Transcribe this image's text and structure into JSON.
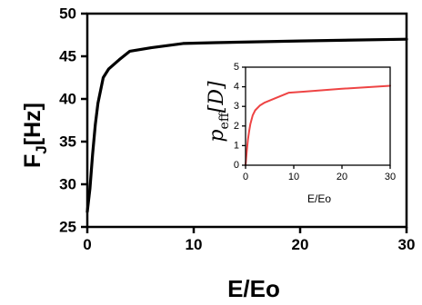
{
  "chart_data": [
    {
      "type": "line",
      "xlabel": "E/Eo",
      "ylabel": {
        "main": "F",
        "sub": "J",
        "units": "[Hz]"
      },
      "xlim": [
        0,
        30
      ],
      "ylim": [
        25,
        50
      ],
      "x_ticks": [
        0,
        10,
        20,
        30
      ],
      "y_ticks": [
        25,
        30,
        35,
        40,
        45,
        50
      ],
      "grid": false,
      "series": [
        {
          "color": "#000000",
          "x": [
            0,
            0.25,
            0.5,
            0.75,
            1.0,
            1.5,
            2.0,
            3.0,
            4.0,
            6.0,
            9.0,
            12.0,
            20.0,
            30.0
          ],
          "y": [
            26.8,
            29.5,
            33.5,
            37.0,
            39.5,
            42.5,
            43.5,
            44.6,
            45.6,
            46.0,
            46.5,
            46.6,
            46.8,
            47.0
          ]
        }
      ]
    },
    {
      "type": "line",
      "xlabel": "E/Eo",
      "ylabel": {
        "main": "p",
        "sub": "eff",
        "bracket": "[D]"
      },
      "xlim": [
        0,
        30
      ],
      "ylim": [
        0,
        5
      ],
      "x_ticks": [
        0,
        10,
        20,
        30
      ],
      "y_ticks": [
        0,
        1,
        2,
        3,
        4,
        5
      ],
      "grid": false,
      "series": [
        {
          "color": "#ee4444",
          "x": [
            0,
            0.25,
            0.5,
            0.75,
            1.0,
            1.5,
            2.0,
            3.0,
            4.0,
            6.0,
            9.0,
            12.0,
            20.0,
            30.0
          ],
          "y": [
            0.0,
            0.7,
            1.3,
            1.75,
            2.1,
            2.55,
            2.8,
            3.05,
            3.2,
            3.4,
            3.7,
            3.75,
            3.9,
            4.05
          ]
        }
      ]
    }
  ]
}
